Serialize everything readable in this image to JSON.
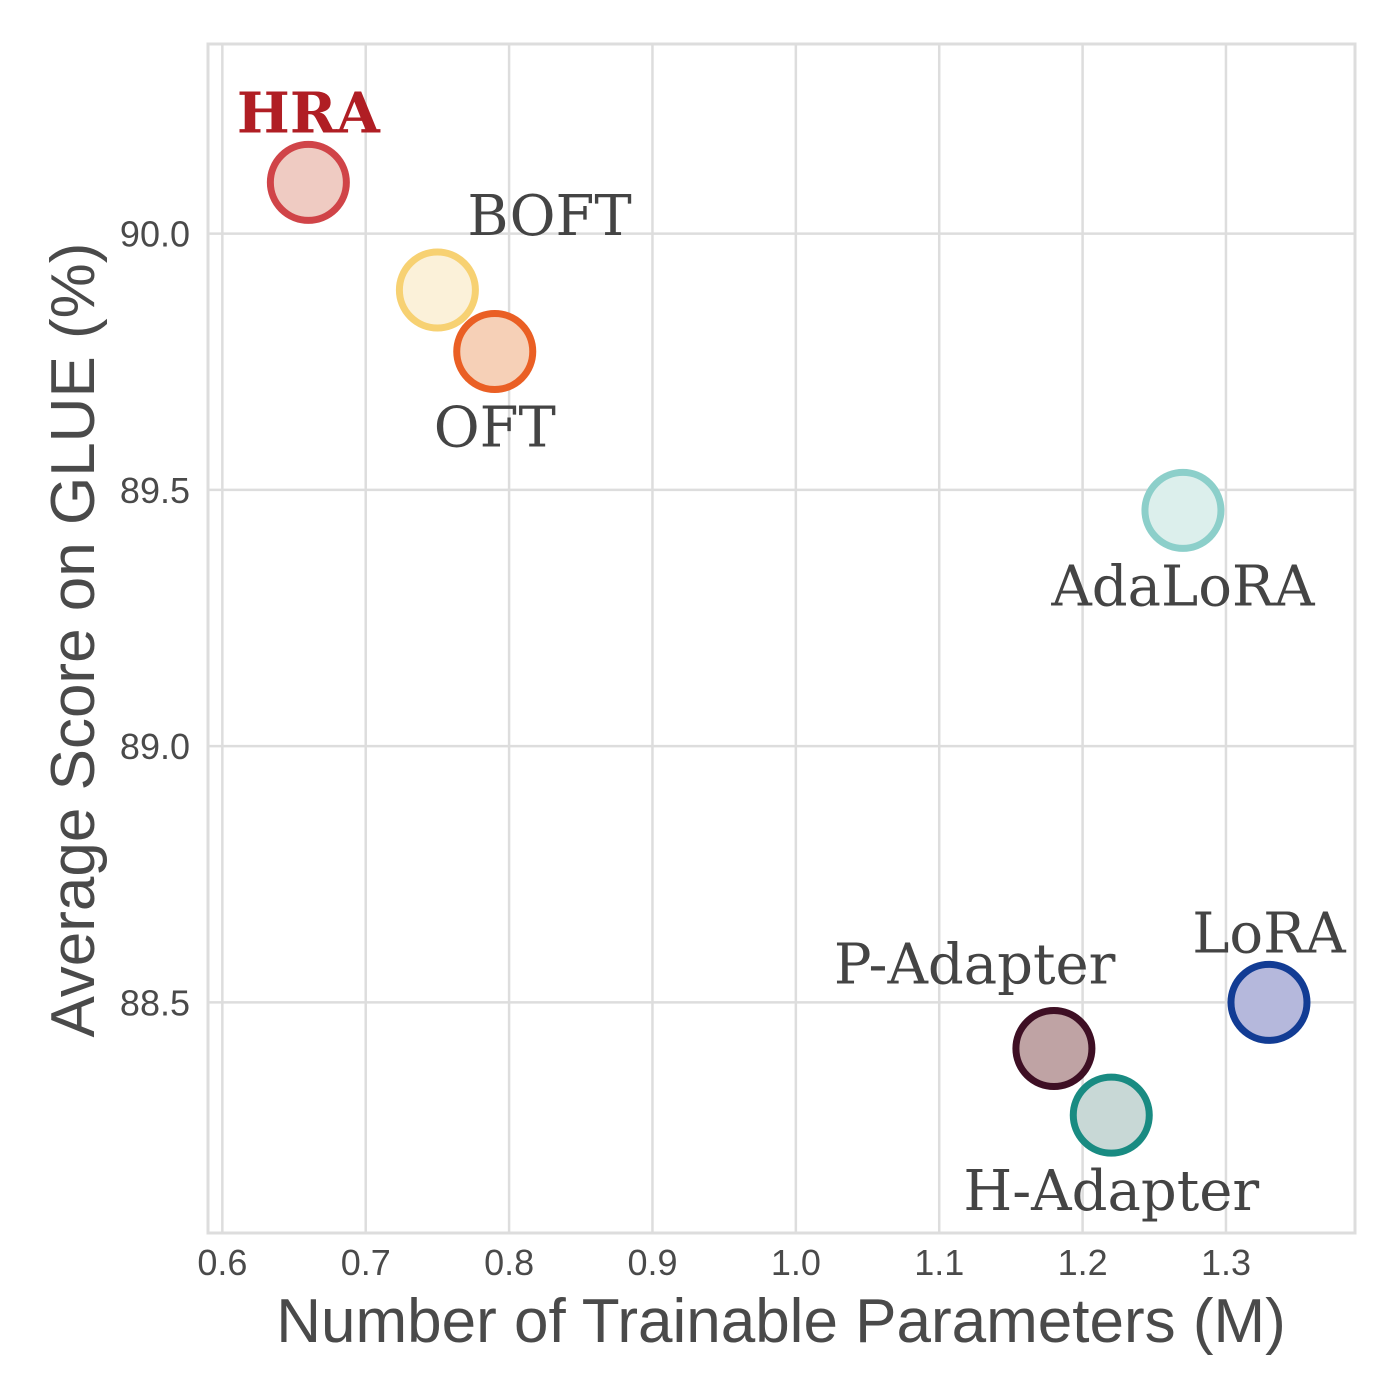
{
  "chart_data": {
    "type": "scatter",
    "title": "",
    "xlabel": "Number of Trainable Parameters (M)",
    "ylabel": "Average Score on GLUE (%)",
    "xlim": [
      0.59,
      1.39
    ],
    "ylim": [
      88.05,
      90.37
    ],
    "xticks": [
      0.6,
      0.7,
      0.8,
      0.9,
      1.0,
      1.1,
      1.2,
      1.3
    ],
    "xtick_labels": [
      "0.6",
      "0.7",
      "0.8",
      "0.9",
      "1.0",
      "1.1",
      "1.2",
      "1.3"
    ],
    "yticks": [
      88.5,
      89.0,
      89.5,
      90.0
    ],
    "ytick_labels": [
      "88.5",
      "89.0",
      "89.5",
      "90.0"
    ],
    "grid": true,
    "points": [
      {
        "name": "HRA",
        "x": 0.66,
        "y": 90.1,
        "edge": "#d04448",
        "fill": "#efcbc2",
        "label_color": "#b01e24",
        "bold": true,
        "label_pos": "above"
      },
      {
        "name": "BOFT",
        "x": 0.75,
        "y": 89.89,
        "edge": "#f7d172",
        "fill": "#fbf1d9",
        "label_color": "#444444",
        "bold": false,
        "label_pos": "above-right"
      },
      {
        "name": "OFT",
        "x": 0.79,
        "y": 89.77,
        "edge": "#ea5f24",
        "fill": "#f6d0b7",
        "label_color": "#444444",
        "bold": false,
        "label_pos": "below"
      },
      {
        "name": "AdaLoRA",
        "x": 1.27,
        "y": 89.46,
        "edge": "#8ccfca",
        "fill": "#dcefec",
        "label_color": "#444444",
        "bold": false,
        "label_pos": "below"
      },
      {
        "name": "P-Adapter",
        "x": 1.18,
        "y": 88.41,
        "edge": "#3e0f24",
        "fill": "#bfa3a4",
        "label_color": "#444444",
        "bold": false,
        "label_pos": "above-left"
      },
      {
        "name": "H-Adapter",
        "x": 1.22,
        "y": 88.28,
        "edge": "#198b82",
        "fill": "#c8d8d6",
        "label_color": "#444444",
        "bold": false,
        "label_pos": "below"
      },
      {
        "name": "LoRA",
        "x": 1.33,
        "y": 88.5,
        "edge": "#123c94",
        "fill": "#b5b8dc",
        "label_color": "#444444",
        "bold": false,
        "label_pos": "above"
      }
    ]
  }
}
